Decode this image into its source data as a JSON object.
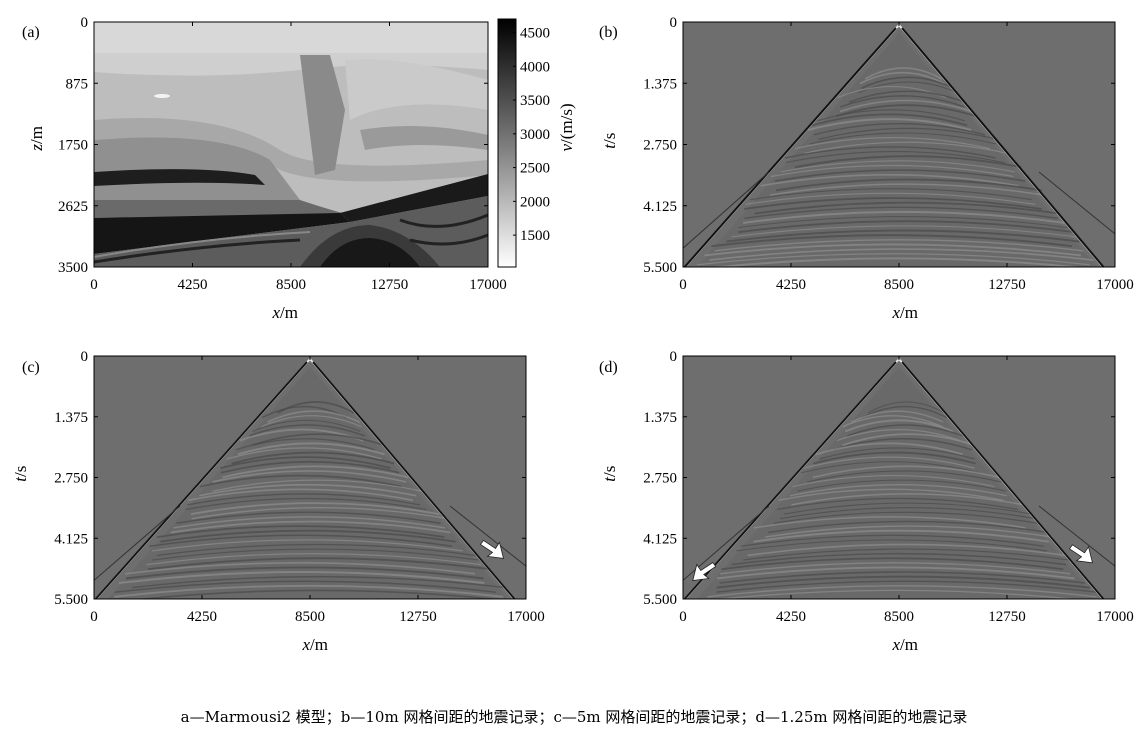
{
  "caption": "a—Marmousi2 模型；b—10m 网格间距的地震记录；c—5m 网格间距的地震记录；d—1.25m 网格间距的地震记录",
  "colors": {
    "background": "#6e6e6e",
    "frame": "#000000",
    "water": "#d8d8d8"
  },
  "chart_data": [
    {
      "type": "heatmap",
      "panel_label": "(a)",
      "x_label_var": "x",
      "x_label_unit": "/m",
      "y_label_var": "z",
      "y_label_unit": "/m",
      "x_ticks": [
        "0",
        "4250",
        "8500",
        "12750",
        "17000"
      ],
      "y_ticks": [
        "0",
        "875",
        "1750",
        "2625",
        "3500"
      ],
      "xlim": [
        0,
        17000
      ],
      "ylim": [
        0,
        3500
      ],
      "y_inverted": true,
      "colorbar": {
        "label_var": "v",
        "label_unit": "/(m/s)",
        "ticks": [
          "4500",
          "4000",
          "3500",
          "3000",
          "2500",
          "2000",
          "1500"
        ],
        "range": [
          1028,
          4700
        ]
      }
    },
    {
      "type": "heatmap",
      "panel_label": "(b)",
      "x_label_var": "x",
      "x_label_unit": "/m",
      "y_label_var": "t",
      "y_label_unit": "/s",
      "x_ticks": [
        "0",
        "4250",
        "8500",
        "12750",
        "17000"
      ],
      "y_ticks": [
        "0",
        "1.375",
        "2.750",
        "4.125",
        "5.500"
      ],
      "xlim": [
        0,
        17000
      ],
      "ylim": [
        0,
        5.5
      ],
      "y_inverted": true,
      "source_x": 8500,
      "arrows": []
    },
    {
      "type": "heatmap",
      "panel_label": "(c)",
      "x_label_var": "x",
      "x_label_unit": "/m",
      "y_label_var": "t",
      "y_label_unit": "/s",
      "x_ticks": [
        "0",
        "4250",
        "8500",
        "12750",
        "17000"
      ],
      "y_ticks": [
        "0",
        "1.375",
        "2.750",
        "4.125",
        "5.500"
      ],
      "xlim": [
        0,
        17000
      ],
      "ylim": [
        0,
        5.5
      ],
      "y_inverted": true,
      "source_x": 8500,
      "arrows": [
        {
          "x": 15800,
          "t": 4.4
        }
      ]
    },
    {
      "type": "heatmap",
      "panel_label": "(d)",
      "x_label_var": "x",
      "x_label_unit": "/m",
      "y_label_var": "t",
      "y_label_unit": "/s",
      "x_ticks": [
        "0",
        "4250",
        "8500",
        "12750",
        "17000"
      ],
      "y_ticks": [
        "0",
        "1.375",
        "2.750",
        "4.125",
        "5.500"
      ],
      "xlim": [
        0,
        17000
      ],
      "ylim": [
        0,
        5.5
      ],
      "y_inverted": true,
      "source_x": 8500,
      "arrows": [
        {
          "x": 15800,
          "t": 4.5
        },
        {
          "x": 700,
          "t": 4.9
        }
      ]
    }
  ]
}
